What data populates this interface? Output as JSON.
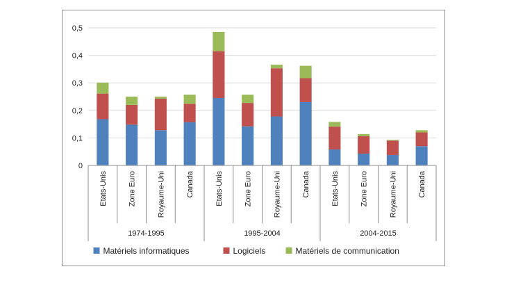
{
  "chart_data": {
    "type": "bar",
    "stacked": true,
    "groups": [
      {
        "label": "1974-1995",
        "categories": [
          "Etats-Unis",
          "Zone Euro",
          "Royaume-Uni",
          "Canada"
        ]
      },
      {
        "label": "1995-2004",
        "categories": [
          "Etats-Unis",
          "Zone Euro",
          "Royaume-Uni",
          "Canada"
        ]
      },
      {
        "label": "2004-2015",
        "categories": [
          "Etats-Unis",
          "Zone Euro",
          "Royaume-Uni",
          "Canada"
        ]
      }
    ],
    "series": [
      {
        "name": "Matériels informatiques",
        "color": "#4f81bd",
        "values": [
          0.168,
          0.148,
          0.128,
          0.157,
          0.245,
          0.142,
          0.178,
          0.23,
          0.058,
          0.043,
          0.038,
          0.07
        ]
      },
      {
        "name": "Logiciels",
        "color": "#c0504d",
        "values": [
          0.093,
          0.072,
          0.115,
          0.067,
          0.17,
          0.085,
          0.175,
          0.087,
          0.083,
          0.063,
          0.052,
          0.05
        ]
      },
      {
        "name": "Matériels de communication",
        "color": "#9bbb59",
        "values": [
          0.04,
          0.03,
          0.007,
          0.033,
          0.07,
          0.03,
          0.013,
          0.045,
          0.017,
          0.008,
          0.003,
          0.008
        ]
      }
    ],
    "ylim": [
      0,
      0.5
    ],
    "yticks": [
      "0",
      "0,1",
      "0,2",
      "0,3",
      "0,4",
      "0,5"
    ],
    "grid": true,
    "legend_position": "bottom"
  }
}
